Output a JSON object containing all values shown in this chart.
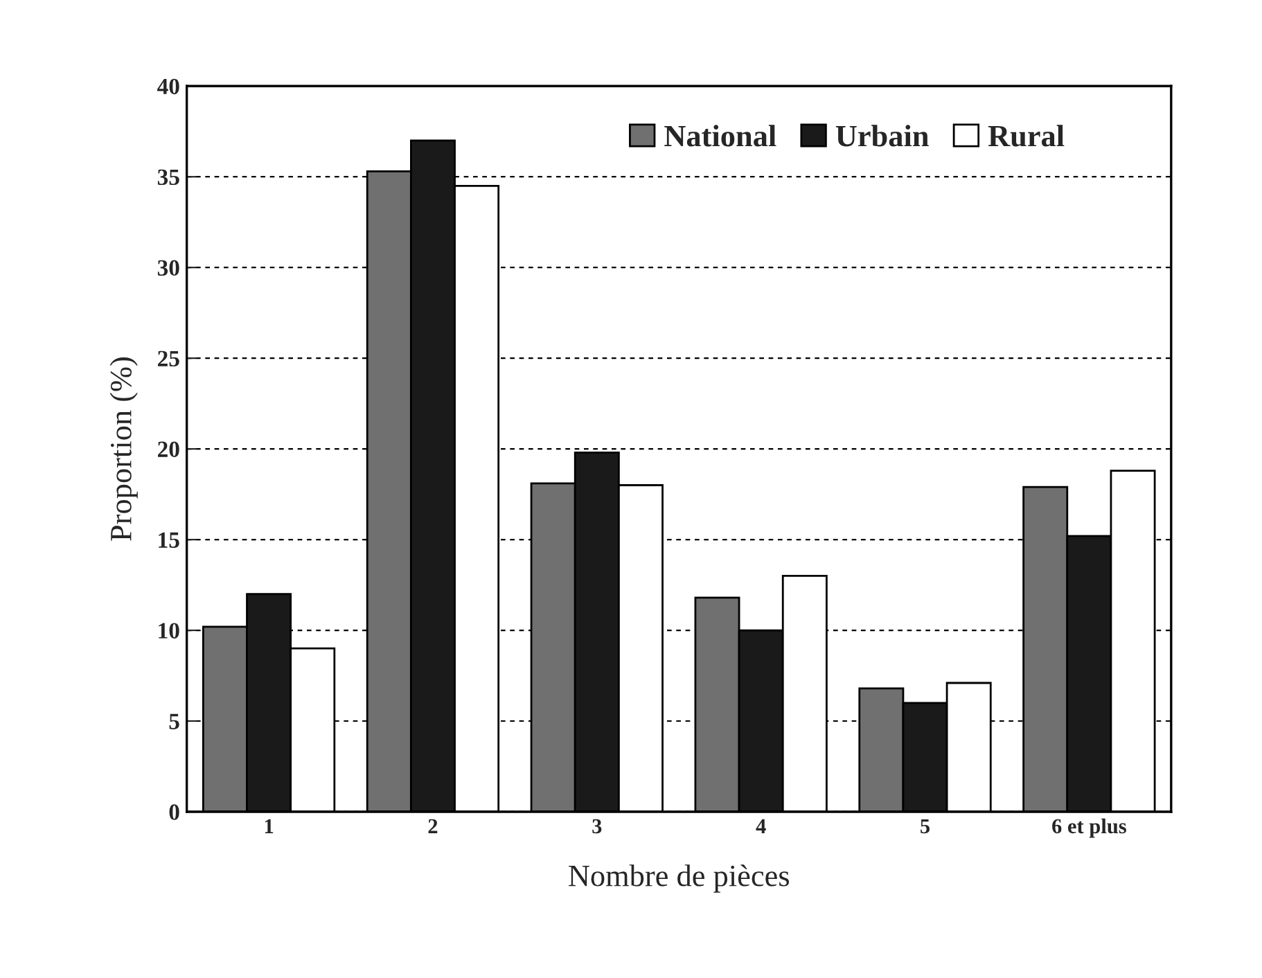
{
  "chart_data": {
    "type": "bar",
    "xlabel": "Nombre de pièces",
    "ylabel": "Proportion (%)",
    "categories": [
      "1",
      "2",
      "3",
      "4",
      "5",
      "6 et plus"
    ],
    "series": [
      {
        "name": "National",
        "color": "#707070",
        "values": [
          10.2,
          35.3,
          18.1,
          11.8,
          6.8,
          17.9
        ]
      },
      {
        "name": "Urbain",
        "color": "#1a1a1a",
        "values": [
          12,
          37,
          19.8,
          10,
          6,
          15.2
        ]
      },
      {
        "name": "Rural",
        "color": "#ffffff",
        "values": [
          9,
          34.5,
          18,
          13,
          7.1,
          18.8
        ]
      }
    ],
    "ylim": [
      0,
      40
    ],
    "yticks": [
      0,
      5,
      10,
      15,
      20,
      25,
      30,
      35,
      40
    ],
    "grid": "y",
    "legend": "top right"
  }
}
